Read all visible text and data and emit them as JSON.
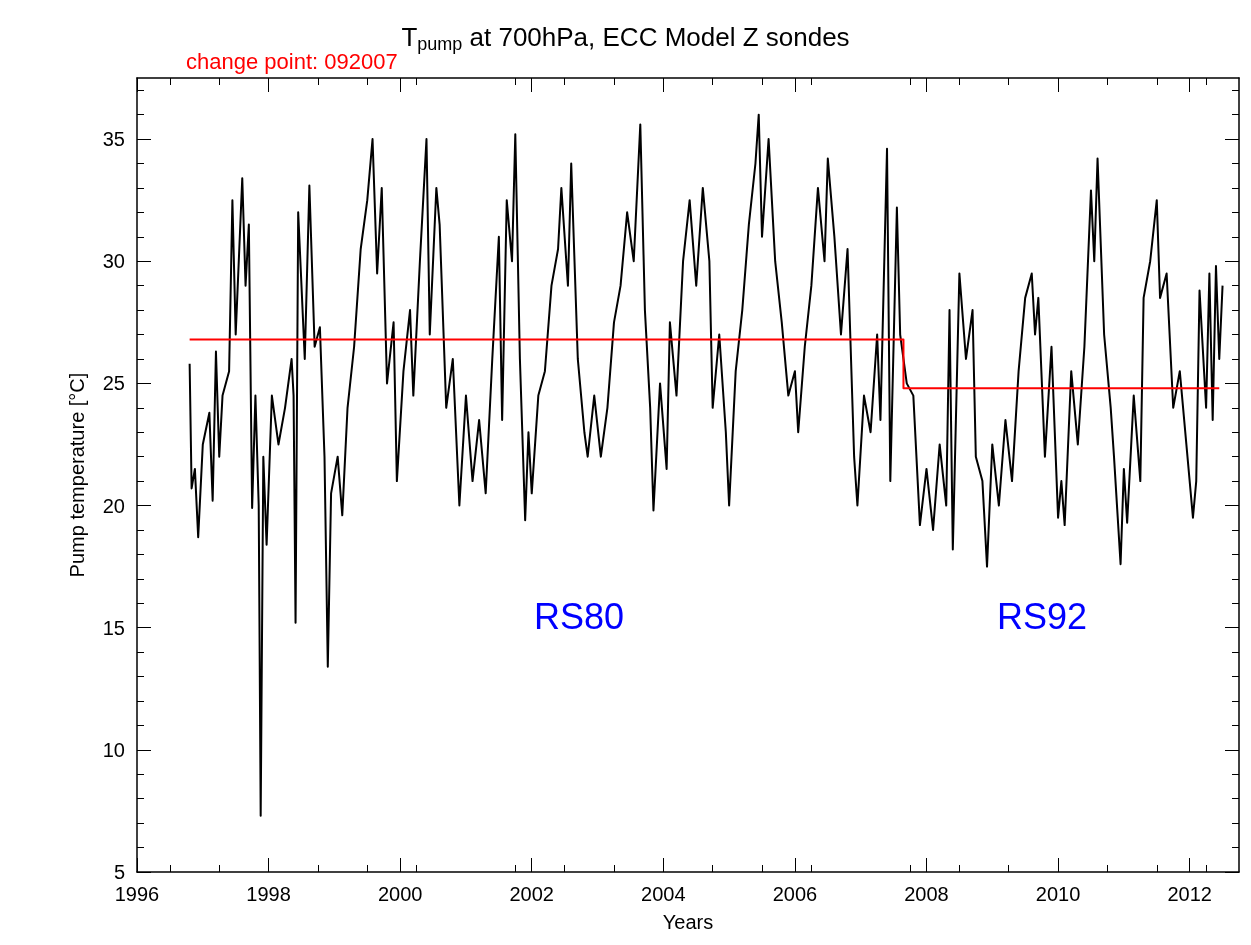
{
  "chart_data": {
    "type": "line",
    "title": "T$_{pump}$ at 700hPa, ECC Model Z sondes",
    "xlabel": "Years",
    "ylabel": "Pump temperature [°C]",
    "xlim": [
      1996,
      2012.75
    ],
    "xticks": [
      1996,
      1998,
      2000,
      2002,
      2004,
      2006,
      2008,
      2010,
      2012
    ],
    "ylim": [
      5,
      37.5
    ],
    "yticks": [
      5,
      10,
      15,
      20,
      25,
      30,
      35
    ],
    "grid": false,
    "marker": "none",
    "line_style": "solid",
    "annotations": [
      "change point: 092007",
      "RS80",
      "RS92"
    ],
    "series": [
      {
        "color": "#000000",
        "x": [
          1996.8,
          1996.83,
          1996.88,
          1996.93,
          1997.0,
          1997.1,
          1997.15,
          1997.2,
          1997.25,
          1997.3,
          1997.4,
          1997.45,
          1997.5,
          1997.6,
          1997.65,
          1997.7,
          1997.75,
          1997.8,
          1997.85,
          1997.88,
          1997.92,
          1997.97,
          1998.05,
          1998.15,
          1998.25,
          1998.35,
          1998.38,
          1998.41,
          1998.45,
          1998.55,
          1998.62,
          1998.7,
          1998.78,
          1998.85,
          1998.9,
          1998.95,
          1999.05,
          1999.12,
          1999.2,
          1999.3,
          1999.4,
          1999.5,
          1999.58,
          1999.65,
          1999.72,
          1999.8,
          1999.9,
          1999.95,
          2000.05,
          2000.15,
          2000.2,
          2000.3,
          2000.4,
          2000.45,
          2000.55,
          2000.6,
          2000.7,
          2000.8,
          2000.9,
          2001.0,
          2001.1,
          2001.2,
          2001.3,
          2001.4,
          2001.5,
          2001.55,
          2001.62,
          2001.7,
          2001.75,
          2001.82,
          2001.9,
          2001.95,
          2002.0,
          2002.1,
          2002.2,
          2002.3,
          2002.4,
          2002.45,
          2002.55,
          2002.6,
          2002.7,
          2002.8,
          2002.85,
          2002.95,
          2003.05,
          2003.15,
          2003.25,
          2003.35,
          2003.45,
          2003.55,
          2003.65,
          2003.72,
          2003.8,
          2003.85,
          2003.95,
          2004.05,
          2004.1,
          2004.2,
          2004.3,
          2004.4,
          2004.5,
          2004.6,
          2004.7,
          2004.75,
          2004.85,
          2004.95,
          2005.0,
          2005.1,
          2005.2,
          2005.3,
          2005.4,
          2005.45,
          2005.5,
          2005.6,
          2005.7,
          2005.8,
          2005.9,
          2006.0,
          2006.05,
          2006.15,
          2006.25,
          2006.35,
          2006.45,
          2006.5,
          2006.6,
          2006.7,
          2006.8,
          2006.9,
          2006.95,
          2007.05,
          2007.15,
          2007.25,
          2007.3,
          2007.4,
          2007.45,
          2007.55,
          2007.6,
          2007.7,
          2007.8,
          2007.9,
          2008.0,
          2008.1,
          2008.2,
          2008.3,
          2008.35,
          2008.4,
          2008.5,
          2008.6,
          2008.7,
          2008.75,
          2008.85,
          2008.92,
          2009.0,
          2009.1,
          2009.2,
          2009.3,
          2009.4,
          2009.5,
          2009.6,
          2009.65,
          2009.7,
          2009.8,
          2009.9,
          2010.0,
          2010.05,
          2010.1,
          2010.2,
          2010.3,
          2010.4,
          2010.5,
          2010.55,
          2010.6,
          2010.7,
          2010.8,
          2010.85,
          2010.95,
          2011.0,
          2011.05,
          2011.15,
          2011.25,
          2011.3,
          2011.4,
          2011.5,
          2011.55,
          2011.65,
          2011.75,
          2011.85,
          2011.95,
          2012.05,
          2012.1,
          2012.15,
          2012.25,
          2012.3,
          2012.35,
          2012.4,
          2012.45,
          2012.5
        ],
        "values": [
          25.8,
          20.7,
          21.5,
          18.7,
          22.5,
          23.8,
          20.2,
          26.3,
          22.0,
          24.5,
          25.5,
          32.5,
          27.0,
          33.4,
          29.0,
          31.5,
          19.9,
          24.5,
          20.0,
          7.3,
          22.0,
          18.4,
          24.5,
          22.5,
          24.0,
          26.0,
          24.5,
          15.2,
          32.0,
          26.0,
          33.1,
          26.5,
          27.3,
          22.0,
          13.4,
          20.5,
          22.0,
          19.6,
          24.0,
          26.5,
          30.5,
          32.5,
          35.0,
          29.5,
          33.0,
          25.0,
          27.5,
          21.0,
          25.5,
          28.0,
          24.5,
          30.0,
          35.0,
          27.0,
          33.0,
          31.5,
          24.0,
          26.0,
          20.0,
          24.5,
          21.0,
          23.5,
          20.5,
          26.0,
          31.0,
          23.5,
          32.5,
          30.0,
          35.2,
          26.0,
          19.4,
          23.0,
          20.5,
          24.5,
          25.5,
          29.0,
          30.5,
          33.0,
          29.0,
          34.0,
          26.0,
          23.0,
          22.0,
          24.5,
          22.0,
          24.0,
          27.5,
          29.0,
          32.0,
          30.0,
          35.6,
          28.0,
          24.0,
          19.8,
          25.0,
          21.5,
          27.5,
          24.5,
          30.0,
          32.5,
          29.0,
          33.0,
          30.0,
          24.0,
          27.0,
          23.0,
          20.0,
          25.5,
          28.0,
          31.5,
          34.0,
          36.0,
          31.0,
          35.0,
          30.0,
          27.5,
          24.5,
          25.5,
          23.0,
          26.5,
          29.0,
          33.0,
          30.0,
          34.2,
          31.0,
          27.0,
          30.5,
          22.0,
          20.0,
          24.5,
          23.0,
          27.0,
          23.5,
          34.6,
          21.0,
          32.2,
          27.0,
          25.0,
          24.5,
          19.2,
          21.5,
          19.0,
          22.5,
          20.0,
          28.0,
          18.2,
          29.5,
          26.0,
          28.0,
          22.0,
          21.0,
          17.5,
          22.5,
          20.0,
          23.5,
          21.0,
          25.5,
          28.5,
          29.5,
          27.0,
          28.5,
          22.0,
          26.5,
          19.5,
          21.0,
          19.2,
          25.5,
          22.5,
          26.5,
          32.9,
          30.0,
          34.2,
          27.0,
          24.0,
          22.0,
          17.6,
          21.5,
          19.3,
          24.5,
          21.0,
          28.5,
          30.0,
          32.5,
          28.5,
          29.5,
          24.0,
          25.5,
          22.5,
          19.5,
          21.0,
          28.8,
          24.0,
          29.5,
          23.5,
          29.8,
          26.0,
          29.0
        ]
      },
      {
        "color": "#ff0000",
        "x": [
          1996.8,
          2007.65,
          2007.65,
          2012.45
        ],
        "values": [
          26.8,
          26.8,
          24.8,
          24.8
        ]
      }
    ]
  }
}
